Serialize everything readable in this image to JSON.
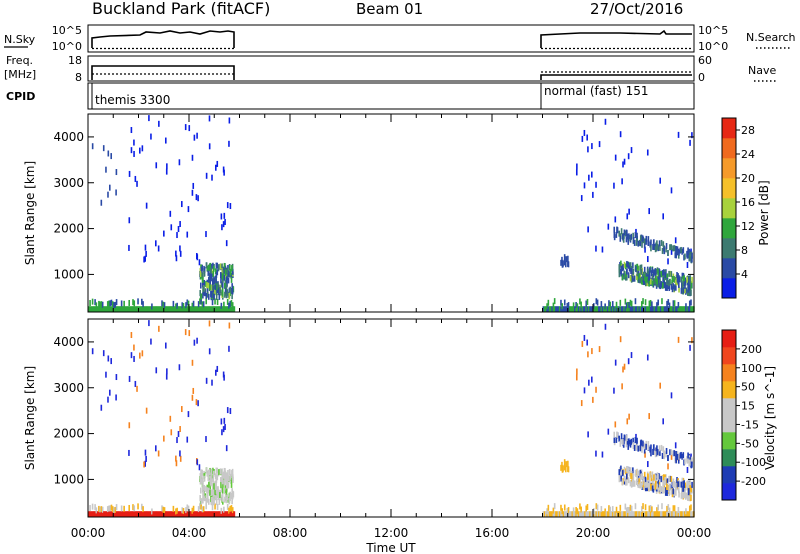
{
  "header": {
    "title": "Buckland Park (fitACF)",
    "beam": "Beam 01",
    "date": "27/Oct/2016"
  },
  "labels": {
    "nsky": "N.Sky",
    "nsky_ticks": [
      "10^5",
      "10^0"
    ],
    "freq": "Freq.",
    "freq_unit": "[MHz]",
    "freq_ticks": [
      "18",
      "8"
    ],
    "cpid": "CPID",
    "nsearch": "N.Search",
    "nsearch_ticks": [
      "10^5",
      "10^0"
    ],
    "nave": "Nave",
    "nave_ticks": [
      "60",
      "0"
    ],
    "program_1": "themis 3300",
    "program_2": "normal (fast) 151"
  },
  "colors": {
    "power_scale": [
      "#0a1ee6",
      "#2a4aa5",
      "#3c7a70",
      "#2fa63c",
      "#a8d23c",
      "#f5c02a",
      "#f59a2a",
      "#f06a1e",
      "#e62814"
    ],
    "velocity_scale": [
      "#e61e14",
      "#f0461e",
      "#f5821e",
      "#f5b41e",
      "#c8c8c8",
      "#c8c8c8",
      "#64c83c",
      "#2e8c58",
      "#1e3cb4",
      "#1e28dc"
    ]
  },
  "chart_data": [
    {
      "type": "heatmap",
      "title": "",
      "xlabel": "",
      "ylabel": "Slant Range [km]",
      "colorbar_label": "Power [dB]",
      "x_ticks": [
        "00:00",
        "04:00",
        "08:00",
        "12:00",
        "16:00",
        "20:00",
        "00:00"
      ],
      "x_range_hours": [
        0,
        24
      ],
      "y_ticks": [
        1000,
        2000,
        3000,
        4000
      ],
      "y_range_km": [
        180,
        4500
      ],
      "colorbar_ticks": [
        4,
        8,
        12,
        16,
        20,
        24,
        28
      ],
      "colorbar_range": [
        0,
        30
      ],
      "data_intervals_hours": [
        [
          0.0,
          5.75
        ],
        [
          18.0,
          24.0
        ]
      ]
    },
    {
      "type": "heatmap",
      "title": "",
      "xlabel": "Time UT",
      "ylabel": "Slant Range [km]",
      "colorbar_label": "Velocity [m s^-1]",
      "x_ticks": [
        "00:00",
        "04:00",
        "08:00",
        "12:00",
        "16:00",
        "20:00",
        "00:00"
      ],
      "x_range_hours": [
        0,
        24
      ],
      "y_ticks": [
        1000,
        2000,
        3000,
        4000
      ],
      "y_range_km": [
        180,
        4500
      ],
      "colorbar_ticks": [
        "200",
        "100",
        "50",
        "15",
        "-15",
        "-50",
        "-100",
        "-200"
      ],
      "data_intervals_hours": [
        [
          0.0,
          5.75
        ],
        [
          18.0,
          24.0
        ]
      ]
    }
  ]
}
